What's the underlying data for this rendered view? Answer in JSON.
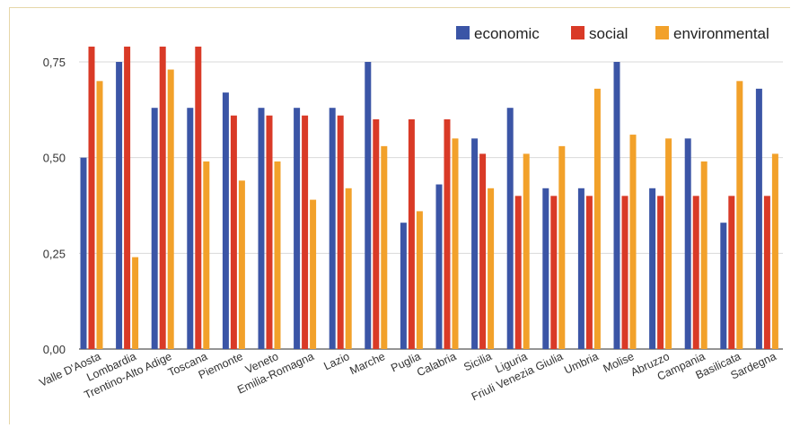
{
  "chart_data": {
    "type": "bar",
    "title": "",
    "xlabel": "",
    "ylabel": "",
    "ylim": [
      0,
      0.9
    ],
    "yticks": [
      "0,00",
      "0,25",
      "0,50",
      "0,75"
    ],
    "grid": true,
    "legend_position": "top-right",
    "categories": [
      "Valle D'Aosta",
      "Lombardia",
      "Trentino-Alto Adige",
      "Toscana",
      "Piemonte",
      "Veneto",
      "Emilia-Romagna",
      "Lazio",
      "Marche",
      "Puglia",
      "Calabria",
      "Sicilia",
      "Liguria",
      "Friuli Venezia Giulia",
      "Umbria",
      "Molise",
      "Abruzzo",
      "Campania",
      "Basilicata",
      "Sardegna"
    ],
    "series": [
      {
        "name": "economic",
        "color": "#3b55a6",
        "values": [
          0.5,
          0.75,
          0.63,
          0.63,
          0.67,
          0.63,
          0.63,
          0.63,
          0.75,
          0.33,
          0.43,
          0.55,
          0.63,
          0.42,
          0.42,
          0.75,
          0.42,
          0.55,
          0.33,
          0.68
        ]
      },
      {
        "name": "social",
        "color": "#d93a27",
        "values": [
          0.79,
          0.79,
          0.79,
          0.79,
          0.61,
          0.61,
          0.61,
          0.61,
          0.6,
          0.6,
          0.6,
          0.51,
          0.4,
          0.4,
          0.4,
          0.4,
          0.4,
          0.4,
          0.4,
          0.4
        ]
      },
      {
        "name": "environmental",
        "color": "#f2a12a",
        "values": [
          0.7,
          0.24,
          0.73,
          0.49,
          0.44,
          0.49,
          0.39,
          0.42,
          0.53,
          0.36,
          0.55,
          0.42,
          0.51,
          0.53,
          0.68,
          0.56,
          0.55,
          0.49,
          0.7,
          0.51
        ]
      }
    ]
  }
}
